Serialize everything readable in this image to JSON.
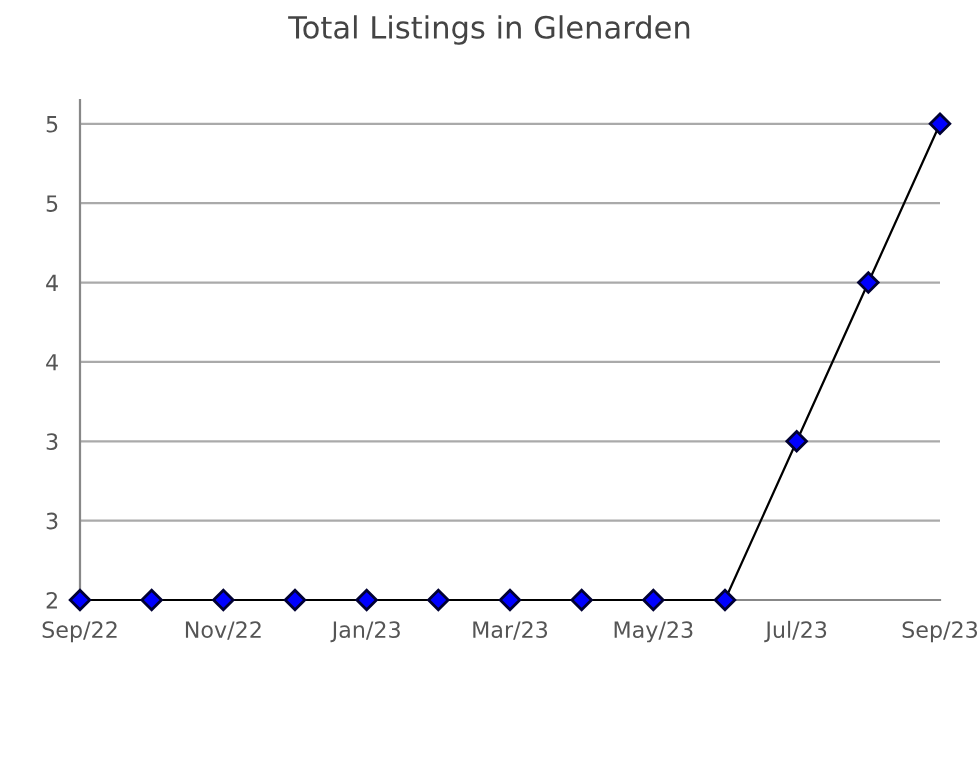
{
  "chart_data": {
    "type": "line",
    "title": "Total Listings in Glenarden",
    "categories": [
      "Sep/22",
      null,
      "Nov/22",
      null,
      "Jan/23",
      null,
      "Mar/23",
      null,
      "May/23",
      null,
      "Jul/23",
      null,
      "Sep/23"
    ],
    "series": [
      {
        "color": "#0000ff",
        "values": [
          2,
          2,
          2,
          2,
          2,
          2,
          2,
          2,
          2,
          2,
          3,
          4,
          5
        ]
      }
    ],
    "ylim": [
      2,
      5.15
    ],
    "yticks": [
      2,
      {
        "value": 2.5,
        "label": "3"
      },
      3,
      {
        "value": 3.5,
        "label": "4"
      },
      4,
      {
        "value": 4.5,
        "label": "5"
      },
      5
    ],
    "grid": "y",
    "marker": "diamond",
    "line_style": "solid"
  }
}
